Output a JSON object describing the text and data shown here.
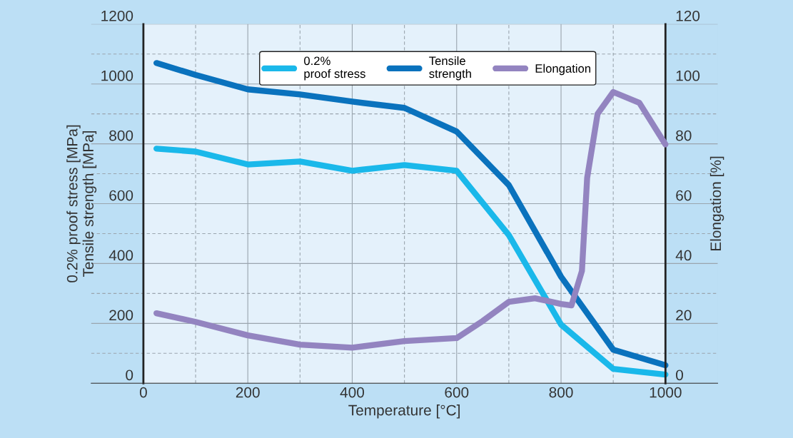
{
  "chart_data": {
    "type": "line",
    "xlabel": "Temperature [°C]",
    "ylabel": "0.2% proof stress [MPa]\nTensile strength [MPa]",
    "y2label": "Elongation [%]",
    "xlim": [
      -100,
      1100
    ],
    "xticks": [
      0,
      200,
      400,
      600,
      800,
      1000
    ],
    "ylim": [
      0,
      1200
    ],
    "yticks": [
      0,
      200,
      400,
      600,
      800,
      1000,
      1200
    ],
    "y2lim": [
      0,
      120
    ],
    "y2ticks": [
      0,
      20,
      40,
      60,
      80,
      100,
      120
    ],
    "grid": true,
    "legend": "top right",
    "marker": "none",
    "line_style": "solid",
    "bands": [
      {
        "axis": "x",
        "from": 0,
        "to": 1000,
        "color": "#e4f1fb"
      }
    ],
    "series": [
      {
        "name": "0.2%\nproof stress",
        "color": "#1ab8ea",
        "x": [
          25,
          100,
          200,
          300,
          400,
          500,
          600,
          700,
          800,
          900,
          1000
        ],
        "values": [
          784,
          774,
          731,
          741,
          710,
          729,
          710,
          495,
          196,
          48,
          29
        ]
      },
      {
        "name": "Tensile\nstrength",
        "color": "#0a72bd",
        "x": [
          25,
          100,
          200,
          300,
          400,
          500,
          600,
          700,
          800,
          900,
          1000
        ],
        "values": [
          1070,
          1030,
          982,
          965,
          941,
          920,
          841,
          662,
          356,
          112,
          60
        ]
      },
      {
        "name": "Elongation",
        "color": "#9384c0",
        "axis": "y2",
        "x": [
          25,
          100,
          200,
          300,
          400,
          500,
          600,
          650,
          700,
          750,
          800,
          820,
          840,
          850,
          870,
          900,
          950,
          1000
        ],
        "values": [
          23.4,
          20.5,
          16,
          12.9,
          11.9,
          14.1,
          15.1,
          20.8,
          27.2,
          28.4,
          26.5,
          26,
          37.5,
          68.6,
          90,
          97.3,
          93.7,
          79.8
        ]
      }
    ]
  }
}
